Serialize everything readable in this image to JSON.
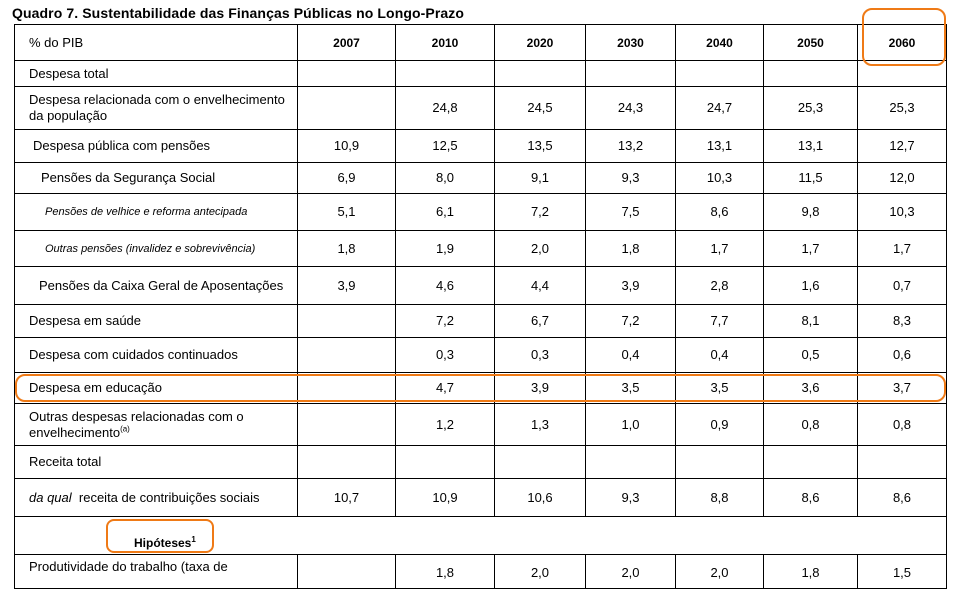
{
  "title": "Quadro 7. Sustentabilidade das Finanças Públicas no Longo-Prazo",
  "header": {
    "label": "% do PIB",
    "years": [
      "2007",
      "2010",
      "2020",
      "2030",
      "2040",
      "2050",
      "2060"
    ]
  },
  "rows": [
    {
      "label": "Despesa total",
      "values": [
        "",
        "",
        "",
        "",
        "",
        "",
        ""
      ]
    },
    {
      "label": "Despesa relacionada com o envelhecimento da população",
      "values": [
        "",
        "24,8",
        "24,5",
        "24,3",
        "24,7",
        "25,3",
        "25,3"
      ]
    },
    {
      "label": "Despesa pública com pensões",
      "values": [
        "10,9",
        "12,5",
        "13,5",
        "13,2",
        "13,1",
        "13,1",
        "12,7"
      ]
    },
    {
      "label": "Pensões da Segurança Social",
      "values": [
        "6,9",
        "8,0",
        "9,1",
        "9,3",
        "10,3",
        "11,5",
        "12,0"
      ]
    },
    {
      "label": "Pensões de velhice e reforma antecipada",
      "values": [
        "5,1",
        "6,1",
        "7,2",
        "7,5",
        "8,6",
        "9,8",
        "10,3"
      ]
    },
    {
      "label": "Outras pensões (invalidez e sobrevivência)",
      "values": [
        "1,8",
        "1,9",
        "2,0",
        "1,8",
        "1,7",
        "1,7",
        "1,7"
      ]
    },
    {
      "label": "Pensões da Caixa Geral de Aposentações",
      "values": [
        "3,9",
        "4,6",
        "4,4",
        "3,9",
        "2,8",
        "1,6",
        "0,7"
      ]
    },
    {
      "label": "Despesa em saúde",
      "values": [
        "",
        "7,2",
        "6,7",
        "7,2",
        "7,7",
        "8,1",
        "8,3"
      ]
    },
    {
      "label": "Despesa com cuidados continuados",
      "values": [
        "",
        "0,3",
        "0,3",
        "0,4",
        "0,4",
        "0,5",
        "0,6"
      ]
    },
    {
      "label": "Despesa em educação",
      "values": [
        "",
        "4,7",
        "3,9",
        "3,5",
        "3,5",
        "3,6",
        "3,7"
      ]
    },
    {
      "label": "Outras despesas relacionadas com o envelhecimento",
      "label_sup": "(a)",
      "values": [
        "",
        "1,2",
        "1,3",
        "1,0",
        "0,9",
        "0,8",
        "0,8"
      ]
    },
    {
      "label": "Receita total",
      "values": [
        "",
        "",
        "",
        "",
        "",
        "",
        ""
      ]
    },
    {
      "label_italic": "da qual",
      "label": "receita de contribuições sociais",
      "values": [
        "10,7",
        "10,9",
        "10,6",
        "9,3",
        "8,8",
        "8,6",
        "8,6"
      ]
    }
  ],
  "section": {
    "label": "Hipóteses",
    "sup": "1"
  },
  "partial_row": {
    "label": "Produtividade do trabalho (taxa de",
    "values": [
      "",
      "1,8",
      "2,0",
      "2,0",
      "2,0",
      "1,8",
      "1,5"
    ]
  },
  "annotation_color": "#ef7a16"
}
